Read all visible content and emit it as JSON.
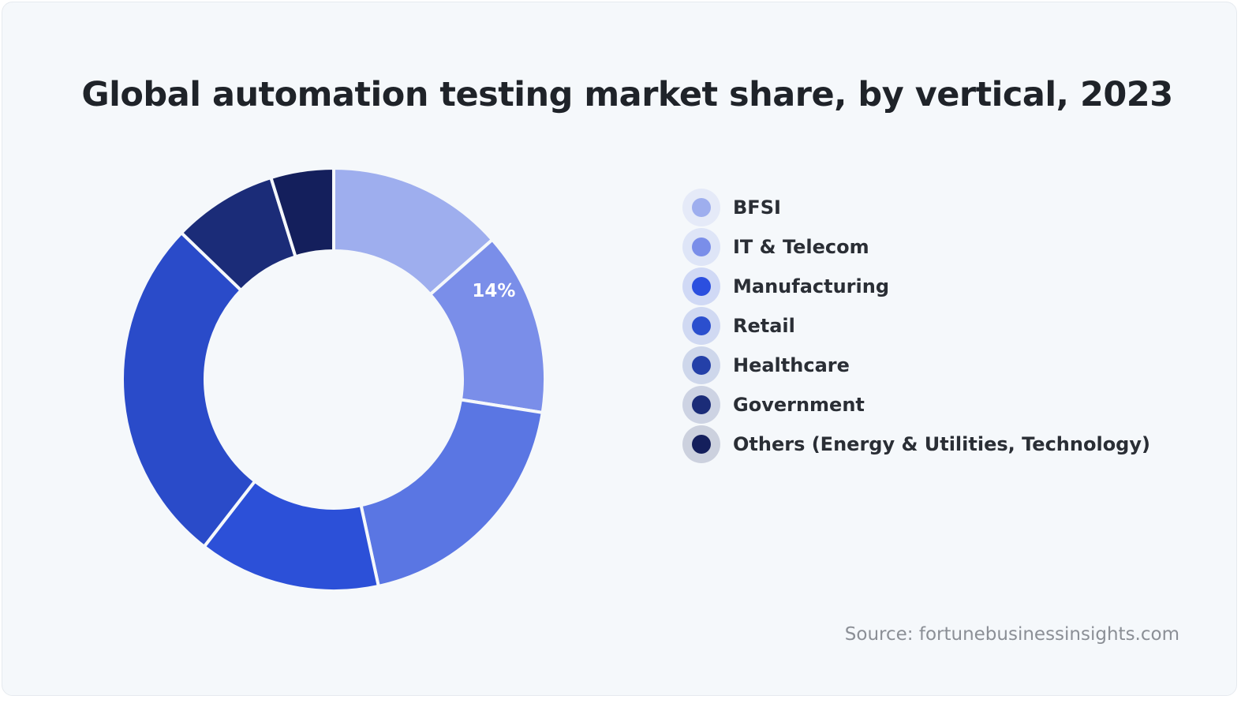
{
  "chart_data": {
    "type": "pie",
    "variant": "donut",
    "title": "Global automation testing market share, by vertical, 2023",
    "categories": [
      "BFSI",
      "IT & Telecom",
      "Manufacturing",
      "Retail",
      "Healthcare",
      "Government",
      "Others (Energy & Utilities, Technology)"
    ],
    "values": [
      13.5,
      14,
      19.1,
      13.9,
      26.7,
      8,
      4.8
    ],
    "unit": "%",
    "data_labels": [
      {
        "category": "IT & Telecom",
        "text": "14%"
      }
    ],
    "slice_colors": [
      "#9eaeee",
      "#7a8ee9",
      "#5a76e3",
      "#2c50d8",
      "#2a4bc9",
      "#1b2c78",
      "#141f5c"
    ],
    "legend_colors": [
      "#9eaeee",
      "#7a8ee9",
      "#2b4fdf",
      "#2b4fce",
      "#2440a8",
      "#1b2c78",
      "#141f5c"
    ],
    "legend_position": "right",
    "source": "Source: fortunebusinessinsights.com"
  }
}
